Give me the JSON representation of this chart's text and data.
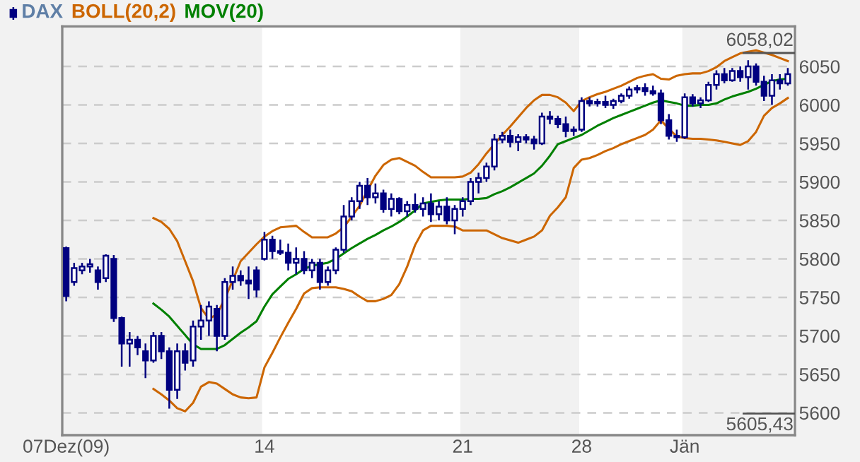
{
  "chart_data": {
    "type": "candlestick",
    "categories": [
      "07Dez(09)",
      null,
      null,
      null,
      null,
      null,
      null,
      null,
      null,
      null,
      null,
      null,
      null,
      null,
      null,
      null,
      null,
      null,
      null,
      null,
      null,
      null,
      null,
      null,
      null,
      "14",
      null,
      null,
      null,
      null,
      null,
      null,
      null,
      null,
      null,
      null,
      null,
      null,
      null,
      null,
      null,
      null,
      null,
      null,
      null,
      null,
      null,
      null,
      null,
      null,
      "21",
      null,
      null,
      null,
      null,
      null,
      null,
      null,
      null,
      null,
      null,
      null,
      null,
      null,
      null,
      "28",
      null,
      null,
      null,
      null,
      null,
      null,
      null,
      null,
      null,
      null,
      null,
      null,
      "Jän",
      null,
      null,
      null,
      null,
      null,
      null,
      null,
      null,
      null,
      null,
      null,
      null,
      null
    ],
    "ylim": [
      5571,
      6102
    ],
    "yticks": [
      5600,
      5650,
      5700,
      5750,
      5800,
      5850,
      5900,
      5950,
      6000,
      6050
    ],
    "grid": "y",
    "legend": "top left",
    "annotations": [
      "6058,02",
      "5605,43"
    ],
    "series": [
      {
        "name": "DAX",
        "color": "#000080",
        "ohlc": [
          [
            5814,
            5816,
            5745,
            5752
          ],
          [
            5770,
            5795,
            5765,
            5788
          ],
          [
            5785,
            5795,
            5780,
            5790
          ],
          [
            5790,
            5800,
            5782,
            5793
          ],
          [
            5785,
            5790,
            5760,
            5770
          ],
          [
            5775,
            5806,
            5770,
            5804
          ],
          [
            5800,
            5805,
            5718,
            5723
          ],
          [
            5723,
            5725,
            5660,
            5690
          ],
          [
            5690,
            5705,
            5660,
            5695
          ],
          [
            5695,
            5700,
            5675,
            5685
          ],
          [
            5680,
            5690,
            5645,
            5668
          ],
          [
            5668,
            5705,
            5665,
            5700
          ],
          [
            5700,
            5705,
            5670,
            5680
          ],
          [
            5680,
            5685,
            5605.43,
            5630
          ],
          [
            5630,
            5690,
            5618,
            5680
          ],
          [
            5680,
            5690,
            5655,
            5665
          ],
          [
            5668,
            5720,
            5660,
            5712
          ],
          [
            5712,
            5740,
            5695,
            5720
          ],
          [
            5720,
            5745,
            5700,
            5738
          ],
          [
            5735,
            5740,
            5680,
            5700
          ],
          [
            5700,
            5775,
            5695,
            5770
          ],
          [
            5770,
            5790,
            5760,
            5778
          ],
          [
            5778,
            5785,
            5765,
            5772
          ],
          [
            5772,
            5790,
            5748,
            5768
          ],
          [
            5785,
            5790,
            5750,
            5760
          ],
          [
            5800,
            5835,
            5798,
            5825
          ],
          [
            5825,
            5830,
            5800,
            5810
          ],
          [
            5810,
            5825,
            5805,
            5808
          ],
          [
            5808,
            5820,
            5785,
            5795
          ],
          [
            5795,
            5815,
            5780,
            5800
          ],
          [
            5800,
            5810,
            5780,
            5785
          ],
          [
            5785,
            5800,
            5775,
            5795
          ],
          [
            5795,
            5800,
            5760,
            5770
          ],
          [
            5770,
            5790,
            5765,
            5785
          ],
          [
            5785,
            5815,
            5780,
            5812
          ],
          [
            5812,
            5870,
            5808,
            5855
          ],
          [
            5855,
            5880,
            5850,
            5875
          ],
          [
            5875,
            5900,
            5865,
            5895
          ],
          [
            5895,
            5905,
            5870,
            5880
          ],
          [
            5880,
            5898,
            5872,
            5885
          ],
          [
            5885,
            5890,
            5860,
            5865
          ],
          [
            5865,
            5885,
            5855,
            5878
          ],
          [
            5878,
            5880,
            5858,
            5862
          ],
          [
            5862,
            5875,
            5855,
            5870
          ],
          [
            5870,
            5885,
            5860,
            5865
          ],
          [
            5865,
            5880,
            5855,
            5872
          ],
          [
            5872,
            5885,
            5848,
            5858
          ],
          [
            5858,
            5875,
            5850,
            5868
          ],
          [
            5868,
            5880,
            5845,
            5850
          ],
          [
            5850,
            5870,
            5832,
            5865
          ],
          [
            5865,
            5880,
            5855,
            5875
          ],
          [
            5875,
            5905,
            5870,
            5900
          ],
          [
            5900,
            5912,
            5885,
            5905
          ],
          [
            5905,
            5925,
            5900,
            5920
          ],
          [
            5920,
            5962,
            5915,
            5955
          ],
          [
            5955,
            5965,
            5950,
            5960
          ],
          [
            5960,
            5968,
            5945,
            5952
          ],
          [
            5952,
            5962,
            5940,
            5958
          ],
          [
            5958,
            5962,
            5950,
            5955
          ],
          [
            5955,
            5960,
            5942,
            5950
          ],
          [
            5950,
            5990,
            5948,
            5985
          ],
          [
            5985,
            5992,
            5975,
            5982
          ],
          [
            5982,
            5986,
            5970,
            5975
          ],
          [
            5975,
            5985,
            5958,
            5966
          ],
          [
            5966,
            5972,
            5960,
            5968
          ],
          [
            5968,
            6010,
            5965,
            6005
          ],
          [
            6005,
            6010,
            5998,
            6002
          ],
          [
            6002,
            6008,
            5998,
            6004
          ],
          [
            6004,
            6012,
            5996,
            6000
          ],
          [
            6000,
            6008,
            5995,
            6005
          ],
          [
            6005,
            6015,
            6002,
            6012
          ],
          [
            6012,
            6024,
            6008,
            6020
          ],
          [
            6020,
            6026,
            6015,
            6022
          ],
          [
            6022,
            6028,
            6012,
            6018
          ],
          [
            6018,
            6025,
            6012,
            6015
          ],
          [
            6015,
            6020,
            5975,
            5980
          ],
          [
            5980,
            5988,
            5955,
            5960
          ],
          [
            5960,
            5968,
            5952,
            5958
          ],
          [
            5958,
            6015,
            5956,
            6010
          ],
          [
            6010,
            6014,
            5998,
            6002
          ],
          [
            6002,
            6010,
            5996,
            6006
          ],
          [
            6006,
            6030,
            6004,
            6026
          ],
          [
            6026,
            6045,
            6020,
            6040
          ],
          [
            6040,
            6048,
            6028,
            6032
          ],
          [
            6032,
            6048,
            6030,
            6044
          ],
          [
            6044,
            6050,
            6030,
            6036
          ],
          [
            6036,
            6058.02,
            6020,
            6050
          ],
          [
            6050,
            6054,
            6025,
            6030
          ],
          [
            6030,
            6038,
            6005,
            6012
          ],
          [
            6012,
            6040,
            6000,
            6032
          ],
          [
            6032,
            6040,
            6020,
            6028
          ],
          [
            6028,
            6048,
            6025,
            6040
          ]
        ]
      },
      {
        "name": "BOLL(20,2)",
        "type": "line",
        "color": "#cc6600",
        "values": [
          null,
          null,
          null,
          null,
          null,
          null,
          null,
          null,
          null,
          null,
          null,
          5853,
          5848,
          5839,
          5823,
          5797,
          5771,
          5736,
          5722,
          5728,
          5748,
          5772,
          5797,
          5808,
          5819,
          5829,
          5836,
          5841,
          5842,
          5843,
          5835,
          5828,
          5828,
          5828,
          5833,
          5841,
          5855,
          5869,
          5889,
          5908,
          5922,
          5929,
          5931,
          5926,
          5921,
          5913,
          5906,
          5906,
          5906,
          5906,
          5907,
          5912,
          5923,
          5937,
          5949,
          5961,
          5972,
          5984,
          5996,
          6006,
          6013,
          6013,
          6010,
          6003,
          5992,
          6005,
          6010,
          6014,
          6017,
          6021,
          6025,
          6030,
          6035,
          6038,
          6040,
          6034,
          6033,
          6038,
          6040,
          6041,
          6041,
          6044,
          6049,
          6057,
          6062,
          6067,
          6069,
          6071,
          6068,
          6065,
          6061,
          6057
        ]
      },
      {
        "type": "line",
        "color": "#cc6600",
        "values": [
          null,
          null,
          null,
          null,
          null,
          null,
          null,
          null,
          null,
          null,
          null,
          5631,
          5624,
          5616,
          5606,
          5602,
          5613,
          5634,
          5640,
          5638,
          5631,
          5624,
          5620,
          5619,
          5620,
          5659,
          5678,
          5698,
          5717,
          5735,
          5755,
          5762,
          5763,
          5763,
          5763,
          5761,
          5758,
          5751,
          5745,
          5745,
          5748,
          5753,
          5767,
          5790,
          5818,
          5837,
          5843,
          5843,
          5843,
          5842,
          5837,
          5837,
          5837,
          5837,
          5832,
          5827,
          5824,
          5821,
          5825,
          5829,
          5837,
          5856,
          5867,
          5880,
          5918,
          5929,
          5931,
          5935,
          5940,
          5944,
          5949,
          5953,
          5957,
          5961,
          5968,
          5980,
          5969,
          5959,
          5957,
          5956,
          5956,
          5955,
          5954,
          5952,
          5950,
          5948,
          5953,
          5965,
          5986,
          5996,
          6002,
          6009
        ]
      },
      {
        "name": "MOV(20)",
        "type": "line",
        "color": "#008000",
        "values": [
          null,
          null,
          null,
          null,
          null,
          null,
          null,
          null,
          null,
          null,
          null,
          5742,
          5734,
          5725,
          5713,
          5701,
          5689,
          5683,
          5683,
          5683,
          5688,
          5696,
          5704,
          5711,
          5719,
          5738,
          5754,
          5764,
          5774,
          5780,
          5787,
          5791,
          5793,
          5795,
          5800,
          5807,
          5814,
          5820,
          5826,
          5831,
          5837,
          5842,
          5848,
          5855,
          5863,
          5872,
          5874,
          5876,
          5877,
          5877,
          5877,
          5878,
          5878,
          5879,
          5884,
          5888,
          5893,
          5899,
          5905,
          5911,
          5921,
          5934,
          5949,
          5953,
          5957,
          5961,
          5967,
          5973,
          5978,
          5983,
          5987,
          5991,
          5995,
          5999,
          6003,
          6006,
          6004,
          6002,
          5999,
          5999,
          6000,
          6000,
          6002,
          6007,
          6011,
          6014,
          6017,
          6021,
          6026,
          6031,
          6033,
          6034
        ]
      }
    ]
  }
}
